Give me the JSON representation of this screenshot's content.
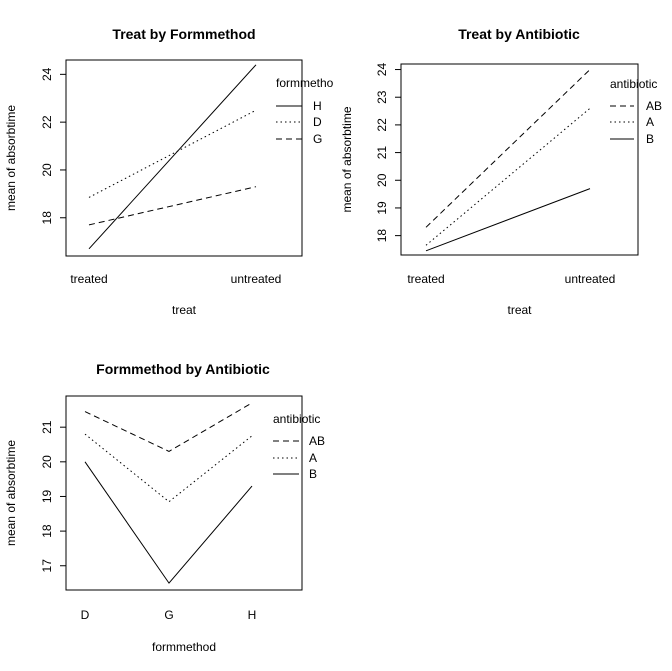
{
  "chart_data": [
    {
      "type": "line",
      "title": "Treat by Formmethod",
      "xlabel": "treat",
      "ylabel": "mean of  absorbtime",
      "categories": [
        "treated",
        "untreated"
      ],
      "ylim": [
        16.4,
        24.6
      ],
      "yticks": [
        18,
        20,
        22,
        24
      ],
      "legend_title": "formmetho",
      "legend_position": "top-right",
      "series": [
        {
          "name": "H",
          "line_style": "solid",
          "values": [
            16.7,
            24.4
          ]
        },
        {
          "name": "D",
          "line_style": "dotted",
          "values": [
            18.85,
            22.5
          ]
        },
        {
          "name": "G",
          "line_style": "dashed",
          "values": [
            17.7,
            19.3
          ]
        }
      ]
    },
    {
      "type": "line",
      "title": "Treat by Antibiotic",
      "xlabel": "treat",
      "ylabel": "mean of  absorbtime",
      "categories": [
        "treated",
        "untreated"
      ],
      "ylim": [
        17.3,
        24.2
      ],
      "yticks": [
        18,
        19,
        20,
        21,
        22,
        23,
        24
      ],
      "legend_title": "antibiotic",
      "legend_position": "top-right",
      "series": [
        {
          "name": "AB",
          "line_style": "dashed",
          "values": [
            18.3,
            24.0
          ]
        },
        {
          "name": "A",
          "line_style": "dotted",
          "values": [
            17.65,
            22.6
          ]
        },
        {
          "name": "B",
          "line_style": "solid",
          "values": [
            17.45,
            19.7
          ]
        }
      ]
    },
    {
      "type": "line",
      "title": "Formmethod by Antibiotic",
      "xlabel": "formmethod",
      "ylabel": "mean of  absorbtime",
      "categories": [
        "D",
        "G",
        "H"
      ],
      "ylim": [
        16.3,
        21.9
      ],
      "yticks": [
        17,
        18,
        19,
        20,
        21
      ],
      "legend_title": "antibiotic",
      "legend_position": "top-right",
      "series": [
        {
          "name": "AB",
          "line_style": "dashed",
          "values": [
            21.45,
            20.3,
            21.7
          ]
        },
        {
          "name": "A",
          "line_style": "dotted",
          "values": [
            20.8,
            18.85,
            20.75
          ]
        },
        {
          "name": "B",
          "line_style": "solid",
          "values": [
            20.0,
            16.5,
            19.3
          ]
        }
      ]
    }
  ]
}
